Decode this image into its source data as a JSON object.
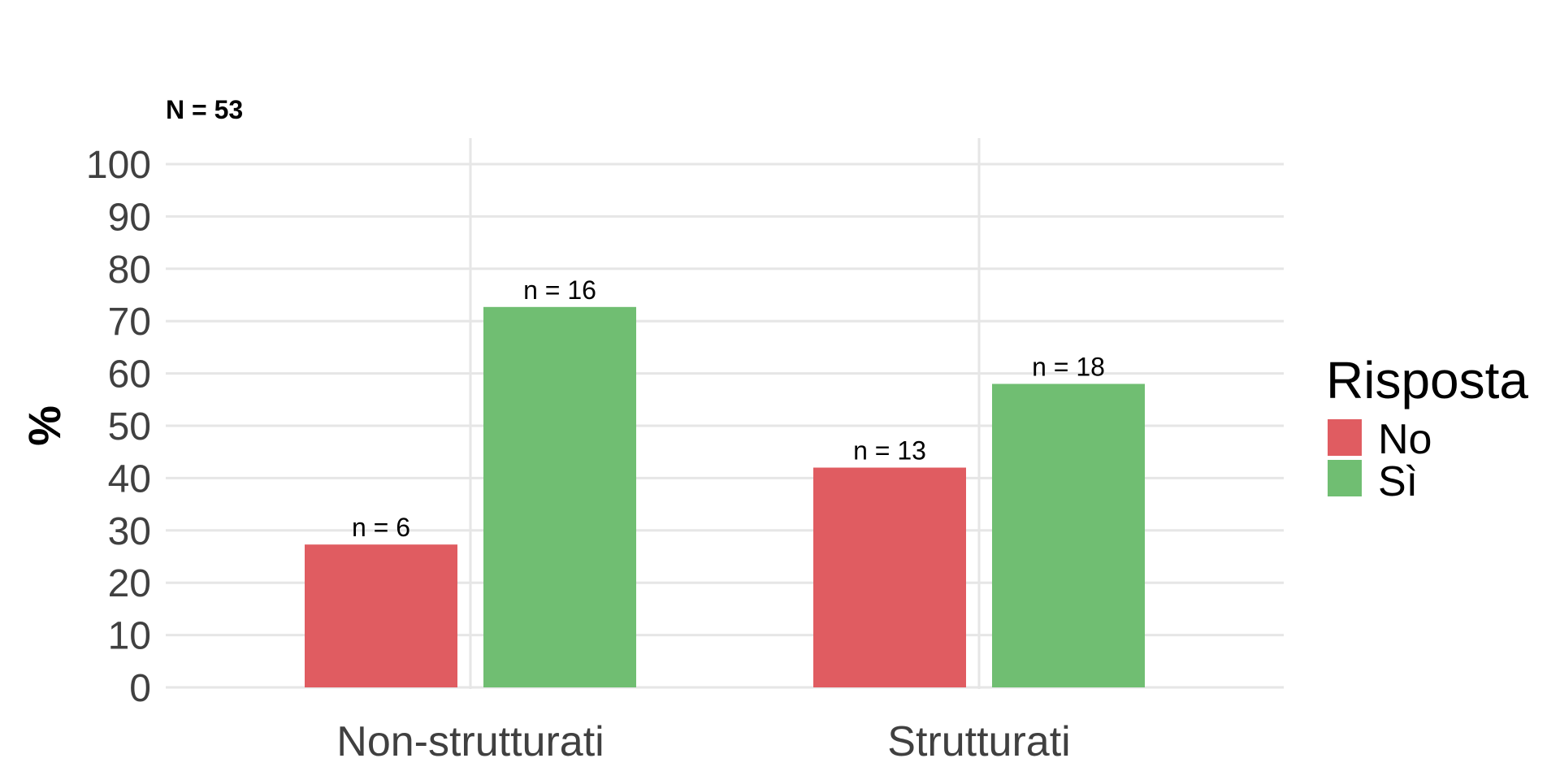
{
  "chart_data": {
    "type": "bar",
    "subtitle": "N = 53",
    "ylabel": "%",
    "xlabel": "",
    "ylim": [
      0,
      100
    ],
    "yticks": [
      0,
      10,
      20,
      30,
      40,
      50,
      60,
      70,
      80,
      90,
      100
    ],
    "categories": [
      "Non-strutturati",
      "Strutturati"
    ],
    "series": [
      {
        "name": "No",
        "color": "#E05C61",
        "values": [
          27.3,
          42
        ],
        "labels": [
          "n = 6",
          "n = 13"
        ]
      },
      {
        "name": "Sì",
        "color": "#70BE72",
        "values": [
          72.7,
          58
        ],
        "labels": [
          "n = 16",
          "n = 18"
        ]
      }
    ],
    "legend": {
      "title": "Risposta",
      "position": "right"
    },
    "grid": true
  }
}
